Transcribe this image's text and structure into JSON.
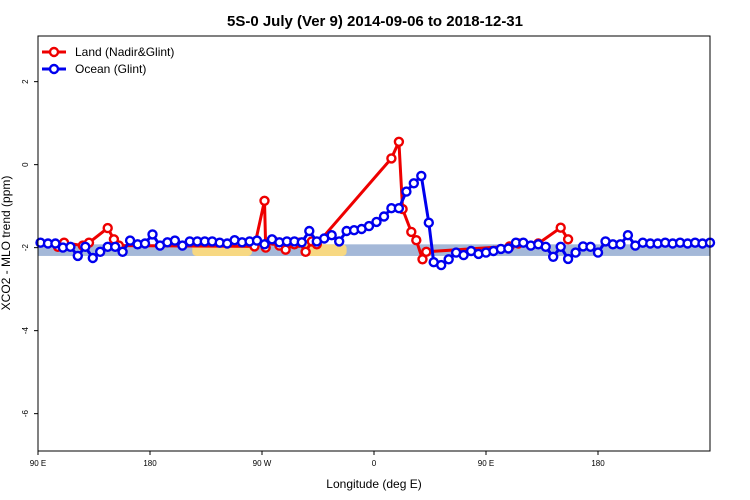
{
  "chart_data": {
    "type": "line",
    "title": "5S-0 July (Ver 9)   2014-09-06 to 2018-12-31",
    "xlabel": "Longitude (deg E)",
    "ylabel": "XCO2 - MLO trend (ppm)",
    "xlim": [
      -90,
      180
    ],
    "ylim": [
      -6.9,
      3.1
    ],
    "xticks": [
      {
        "value": -90,
        "label": "90 E"
      },
      {
        "value": -45,
        "label": "180"
      },
      {
        "value": 0,
        "label": "90 W"
      },
      {
        "value": 45,
        "label": "0"
      },
      {
        "value": 90,
        "label": "90 E"
      },
      {
        "value": 135,
        "label": "180"
      }
    ],
    "yticks": [
      {
        "value": 2,
        "label": "2"
      },
      {
        "value": 0,
        "label": "0"
      },
      {
        "value": -2,
        "label": "-2"
      },
      {
        "value": -4,
        "label": "-4"
      },
      {
        "value": -6,
        "label": "-6"
      }
    ],
    "legend_position": "top-left",
    "grid": false,
    "band": {
      "y_low": -2.2,
      "y_high": -1.92,
      "color": "#a4b8d8"
    },
    "land_segments": [
      {
        "x_from": -28,
        "x_to": -4,
        "color": "#f7d882"
      },
      {
        "x_from": 16.5,
        "x_to": 34,
        "color": "#f7d882"
      }
    ],
    "series": [
      {
        "name": "Land (Nadir&Glint)",
        "color": "#ee0000",
        "points": [
          [
            -82,
            -1.98
          ],
          [
            -79.5,
            -1.88
          ],
          [
            -72,
            -1.95
          ],
          [
            -69.5,
            -1.88
          ],
          [
            -62,
            -1.53
          ],
          [
            -59.5,
            -1.8
          ],
          [
            -57.5,
            -1.95
          ],
          [
            -3,
            -1.97
          ],
          [
            1,
            -0.87
          ],
          [
            1.5,
            -2.0
          ],
          [
            4.5,
            -1.83
          ],
          [
            7,
            -1.95
          ],
          [
            9.5,
            -2.05
          ],
          [
            13,
            -1.92
          ],
          [
            15,
            -1.88
          ],
          [
            17.5,
            -2.1
          ],
          [
            20,
            -1.85
          ],
          [
            22,
            -1.92
          ],
          [
            52,
            0.15
          ],
          [
            55,
            0.55
          ],
          [
            56.5,
            -1.07
          ],
          [
            60,
            -1.62
          ],
          [
            62,
            -1.82
          ],
          [
            64.5,
            -2.28
          ],
          [
            66,
            -2.1
          ],
          [
            99.5,
            -1.97
          ],
          [
            103,
            -1.9
          ],
          [
            111,
            -1.9
          ],
          [
            120,
            -1.52
          ],
          [
            123,
            -1.8
          ]
        ]
      },
      {
        "name": "Ocean (Glint)",
        "color": "#0000ee",
        "points": [
          [
            -89,
            -1.88
          ],
          [
            -86,
            -1.9
          ],
          [
            -83,
            -1.9
          ],
          [
            -80,
            -2.0
          ],
          [
            -77,
            -1.98
          ],
          [
            -74,
            -2.2
          ],
          [
            -71,
            -1.98
          ],
          [
            -68,
            -2.25
          ],
          [
            -65,
            -2.1
          ],
          [
            -62,
            -1.98
          ],
          [
            -59,
            -1.98
          ],
          [
            -56,
            -2.1
          ],
          [
            -53,
            -1.83
          ],
          [
            -50,
            -1.92
          ],
          [
            -47,
            -1.9
          ],
          [
            -44,
            -1.68
          ],
          [
            -41,
            -1.95
          ],
          [
            -38,
            -1.87
          ],
          [
            -35,
            -1.83
          ],
          [
            -32,
            -1.95
          ],
          [
            -29,
            -1.85
          ],
          [
            -26,
            -1.85
          ],
          [
            -23,
            -1.85
          ],
          [
            -20,
            -1.85
          ],
          [
            -17,
            -1.88
          ],
          [
            -14,
            -1.9
          ],
          [
            -11,
            -1.82
          ],
          [
            -8,
            -1.87
          ],
          [
            -5,
            -1.85
          ],
          [
            -2,
            -1.83
          ],
          [
            1,
            -1.92
          ],
          [
            4,
            -1.8
          ],
          [
            7,
            -1.87
          ],
          [
            10,
            -1.85
          ],
          [
            13,
            -1.85
          ],
          [
            16,
            -1.87
          ],
          [
            19,
            -1.6
          ],
          [
            22,
            -1.85
          ],
          [
            25,
            -1.78
          ],
          [
            28,
            -1.7
          ],
          [
            31,
            -1.85
          ],
          [
            34,
            -1.6
          ],
          [
            37,
            -1.58
          ],
          [
            40,
            -1.55
          ],
          [
            43,
            -1.48
          ],
          [
            46,
            -1.38
          ],
          [
            49,
            -1.25
          ],
          [
            52,
            -1.05
          ],
          [
            55,
            -1.05
          ],
          [
            58,
            -0.65
          ],
          [
            61,
            -0.45
          ],
          [
            64,
            -0.27
          ],
          [
            67,
            -1.4
          ],
          [
            69,
            -2.35
          ],
          [
            72,
            -2.42
          ],
          [
            75,
            -2.28
          ],
          [
            78,
            -2.12
          ],
          [
            81,
            -2.18
          ],
          [
            84,
            -2.08
          ],
          [
            87,
            -2.15
          ],
          [
            90,
            -2.12
          ],
          [
            93,
            -2.08
          ],
          [
            96,
            -2.03
          ],
          [
            99,
            -2.02
          ],
          [
            102,
            -1.88
          ],
          [
            105,
            -1.88
          ],
          [
            108,
            -1.95
          ],
          [
            111,
            -1.92
          ],
          [
            114,
            -1.98
          ],
          [
            117,
            -2.22
          ],
          [
            120,
            -1.98
          ],
          [
            123,
            -2.27
          ],
          [
            126,
            -2.12
          ],
          [
            129,
            -1.97
          ],
          [
            132,
            -1.98
          ],
          [
            135,
            -2.12
          ],
          [
            138,
            -1.85
          ],
          [
            141,
            -1.92
          ],
          [
            144,
            -1.92
          ],
          [
            147,
            -1.7
          ],
          [
            150,
            -1.95
          ],
          [
            153,
            -1.88
          ],
          [
            156,
            -1.9
          ],
          [
            159,
            -1.9
          ],
          [
            162,
            -1.88
          ],
          [
            165,
            -1.9
          ],
          [
            168,
            -1.88
          ],
          [
            171,
            -1.9
          ],
          [
            174,
            -1.88
          ],
          [
            177,
            -1.9
          ],
          [
            180,
            -1.88
          ]
        ]
      }
    ]
  }
}
